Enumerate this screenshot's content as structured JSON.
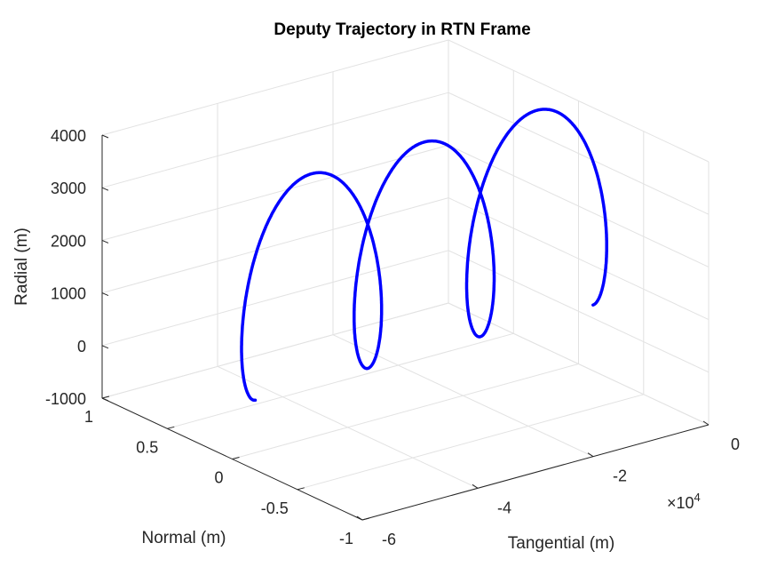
{
  "chart_data": {
    "type": "line3d",
    "title": "Deputy Trajectory in RTN Frame",
    "xlabel": "Tangential (m)",
    "ylabel": "Normal (m)",
    "zlabel": "Radial (m)",
    "x_multiplier_label": "×10",
    "x_multiplier_exp": "4",
    "xlim": [
      -6,
      0
    ],
    "ylim": [
      -1,
      1
    ],
    "zlim": [
      -1000,
      4000
    ],
    "x_ticks": [
      -6,
      -4,
      -2,
      0
    ],
    "x_tick_labels": [
      "-6",
      "-4",
      "-2",
      "0"
    ],
    "y_ticks": [
      -1,
      -0.5,
      0,
      0.5,
      1
    ],
    "y_tick_labels": [
      "-1",
      "-0.5",
      "0",
      "0.5",
      "1"
    ],
    "z_ticks": [
      -1000,
      0,
      1000,
      2000,
      3000,
      4000
    ],
    "z_tick_labels": [
      "-1000",
      "0",
      "1000",
      "2000",
      "3000",
      "4000"
    ],
    "grid": true,
    "series": [
      {
        "name": "deputy",
        "color": "#0000ff",
        "normal_value": 0,
        "loops": 3,
        "tangential_start": -5.6,
        "tangential_end": -0.4,
        "loop_tangential_spacing": 1.95,
        "loop_tangential_amplitude": 0.65,
        "radial_center": 2000,
        "radial_amplitude": 2000,
        "radial_drift_per_loop": 15
      }
    ]
  }
}
